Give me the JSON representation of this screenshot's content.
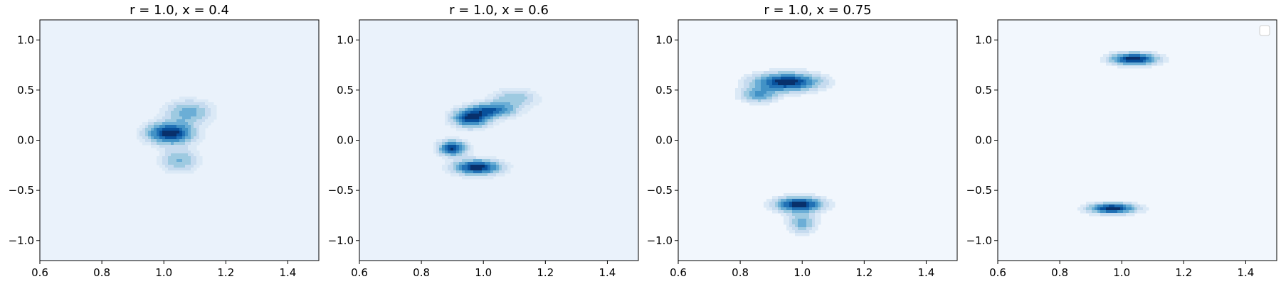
{
  "figure": {
    "panel_count": 4
  },
  "chart_data": [
    {
      "type": "contour",
      "title": "r = 1.0, x = 0.4",
      "xlim": [
        0.6,
        1.5
      ],
      "ylim": [
        -1.2,
        1.2
      ],
      "xticks": [
        "0.6",
        "0.8",
        "1.0",
        "1.2",
        "1.4"
      ],
      "yticks": [
        "−1.0",
        "−0.5",
        "0.0",
        "0.5",
        "1.0"
      ],
      "colormap": "Blues",
      "background_level_color": "#eaf2fb",
      "density_peaks": [
        {
          "x": 1.02,
          "y": 0.07,
          "sx": 0.05,
          "sy": 0.07,
          "weight": 1.0
        },
        {
          "x": 1.08,
          "y": 0.28,
          "sx": 0.05,
          "sy": 0.08,
          "weight": 0.45
        },
        {
          "x": 1.05,
          "y": -0.2,
          "sx": 0.04,
          "sy": 0.08,
          "weight": 0.4
        }
      ],
      "legend": null
    },
    {
      "type": "contour",
      "title": "r = 1.0, x = 0.6",
      "xlim": [
        0.6,
        1.5
      ],
      "ylim": [
        -1.2,
        1.2
      ],
      "xticks": [
        "0.6",
        "0.8",
        "1.0",
        "1.2",
        "1.4"
      ],
      "yticks": [
        "−1.0",
        "−0.5",
        "0.0",
        "0.5",
        "1.0"
      ],
      "colormap": "Blues",
      "background_level_color": "#eaf2fb",
      "density_peaks": [
        {
          "x": 0.96,
          "y": 0.22,
          "sx": 0.04,
          "sy": 0.06,
          "weight": 0.9
        },
        {
          "x": 1.03,
          "y": 0.3,
          "sx": 0.05,
          "sy": 0.05,
          "weight": 0.7
        },
        {
          "x": 0.9,
          "y": -0.08,
          "sx": 0.03,
          "sy": 0.05,
          "weight": 0.9
        },
        {
          "x": 0.98,
          "y": -0.27,
          "sx": 0.05,
          "sy": 0.05,
          "weight": 1.0
        },
        {
          "x": 1.1,
          "y": 0.42,
          "sx": 0.05,
          "sy": 0.06,
          "weight": 0.35
        }
      ],
      "legend": null
    },
    {
      "type": "contour",
      "title": "r = 1.0, x = 0.75",
      "xlim": [
        0.6,
        1.5
      ],
      "ylim": [
        -1.2,
        1.2
      ],
      "xticks": [
        "0.6",
        "0.8",
        "1.0",
        "1.2",
        "1.4"
      ],
      "yticks": [
        "−1.0",
        "−0.5",
        "0.0",
        "0.5",
        "1.0"
      ],
      "colormap": "Blues",
      "background_level_color": "#f2f7fd",
      "density_peaks": [
        {
          "x": 0.95,
          "y": 0.58,
          "sx": 0.07,
          "sy": 0.06,
          "weight": 1.0
        },
        {
          "x": 0.86,
          "y": 0.45,
          "sx": 0.04,
          "sy": 0.05,
          "weight": 0.5
        },
        {
          "x": 0.99,
          "y": -0.64,
          "sx": 0.05,
          "sy": 0.05,
          "weight": 1.0
        },
        {
          "x": 1.0,
          "y": -0.82,
          "sx": 0.03,
          "sy": 0.07,
          "weight": 0.45
        }
      ],
      "legend": null
    },
    {
      "type": "contour",
      "title": "",
      "xlim": [
        0.6,
        1.5
      ],
      "ylim": [
        -1.2,
        1.2
      ],
      "xticks": [
        "0.6",
        "0.8",
        "1.0",
        "1.2",
        "1.4"
      ],
      "yticks": [
        "−1.0",
        "−0.5",
        "0.0",
        "0.5",
        "1.0"
      ],
      "colormap": "Blues",
      "background_level_color": "#f2f7fd",
      "density_peaks": [
        {
          "x": 1.04,
          "y": 0.81,
          "sx": 0.05,
          "sy": 0.04,
          "weight": 1.0
        },
        {
          "x": 0.97,
          "y": -0.68,
          "sx": 0.05,
          "sy": 0.035,
          "weight": 1.0
        }
      ],
      "legend": {
        "placement": "upper right",
        "entries": []
      }
    }
  ]
}
